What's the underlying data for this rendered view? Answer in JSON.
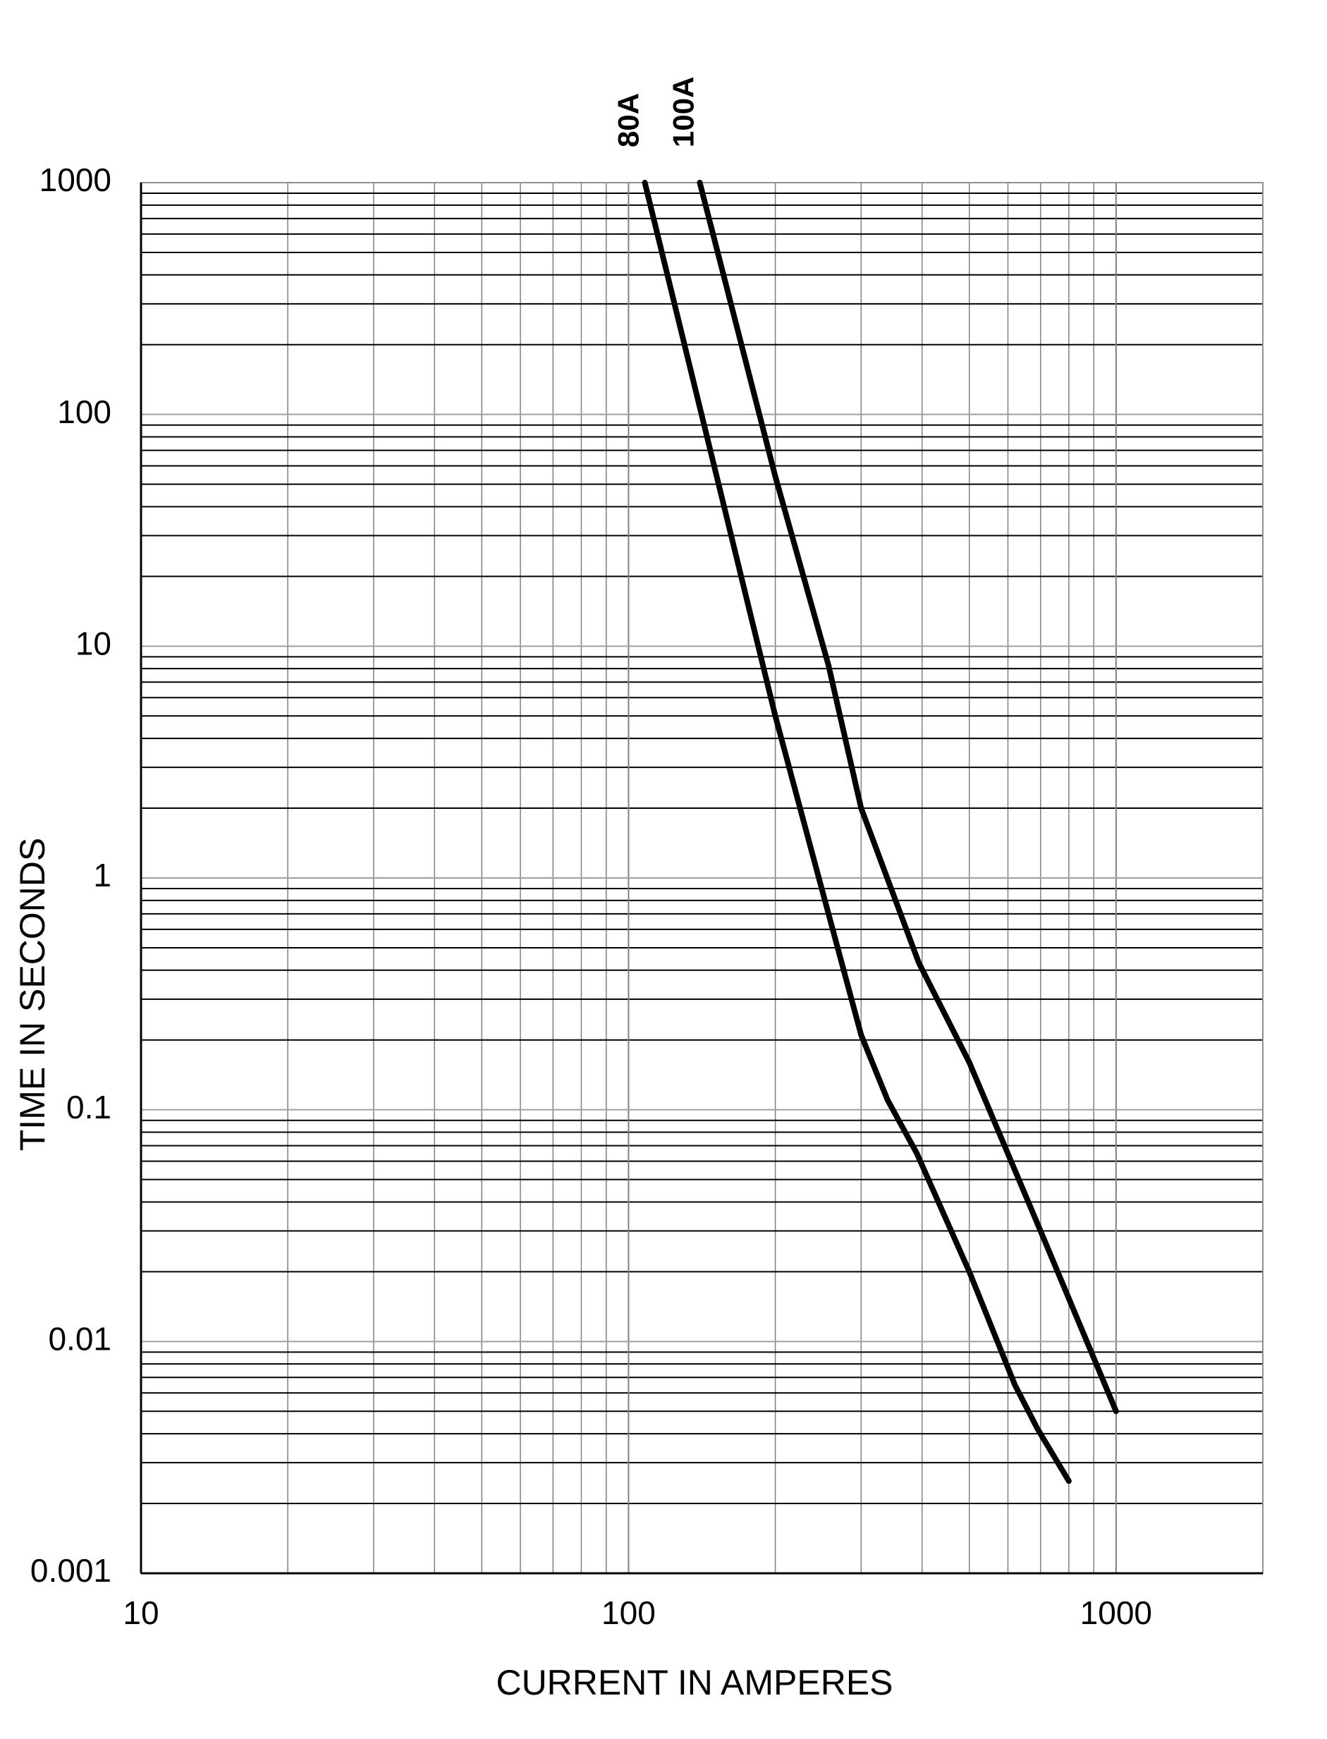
{
  "chart_data": {
    "type": "line",
    "x_label": "CURRENT IN AMPERES",
    "y_label": "TIME IN SECONDS",
    "x_log": true,
    "y_log": true,
    "grid": true,
    "xlim": [
      10,
      2000
    ],
    "xticks": [
      10,
      100,
      1000
    ],
    "ylim": [
      0.001,
      1000
    ],
    "yticks": [
      0.001,
      0.01,
      0.1,
      1,
      10,
      100,
      1000
    ],
    "series": [
      {
        "name": "80A",
        "color": "#000000",
        "x": [
          108,
          200,
          240,
          300,
          340,
          390,
          500,
          620,
          690,
          800
        ],
        "values": [
          1000,
          5,
          1.2,
          0.21,
          0.11,
          0.065,
          0.02,
          0.0065,
          0.0042,
          0.0025
        ]
      },
      {
        "name": "100A",
        "color": "#000000",
        "x": [
          140,
          200,
          257,
          300,
          394,
          500,
          700,
          1000
        ],
        "values": [
          1000,
          54,
          8.3,
          2,
          0.43,
          0.16,
          0.03,
          0.005
        ]
      }
    ]
  }
}
